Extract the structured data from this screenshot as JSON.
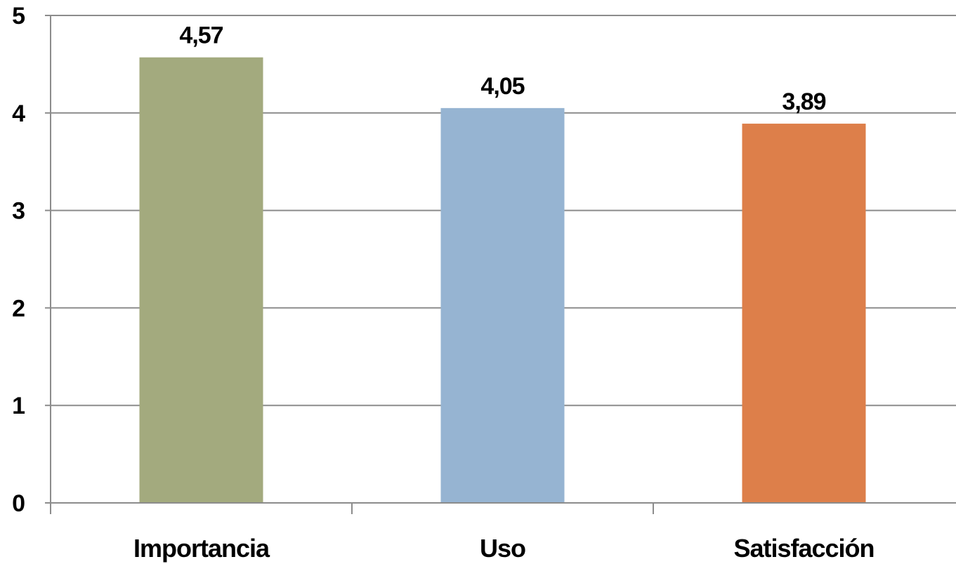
{
  "chart_data": {
    "type": "bar",
    "categories": [
      "Importancia",
      "Uso",
      "Satisfacción"
    ],
    "values": [
      4.57,
      4.05,
      3.89
    ],
    "value_labels": [
      "4,57",
      "4,05",
      "3,89"
    ],
    "colors": [
      "#a3aa7e",
      "#96b4d2",
      "#dd7f4a"
    ],
    "title": "",
    "xlabel": "",
    "ylabel": "",
    "ylim": [
      0,
      5
    ],
    "yticks": [
      0,
      1,
      2,
      3,
      4,
      5
    ],
    "ytick_labels": [
      "0",
      "1",
      "2",
      "3",
      "4",
      "5"
    ],
    "grid": true,
    "legend": "none"
  }
}
